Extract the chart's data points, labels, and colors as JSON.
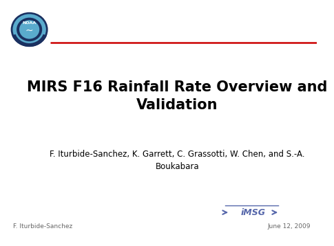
{
  "title_line1": "MIRS F16 Rainfall Rate Overview and",
  "title_line2": "Validation",
  "authors_line1": "F. Iturbide-Sanchez, K. Garrett, C. Grassotti, W. Chen, and S.-A.",
  "authors_line2": "Boukabara",
  "footer_left": "F. Iturbide-Sanchez",
  "footer_right": "June 12, 2009",
  "bg_color": "#ffffff",
  "title_color": "#000000",
  "authors_color": "#000000",
  "footer_color": "#666666",
  "red_line_color": "#cc0000",
  "title_fontsize": 15,
  "authors_fontsize": 8.5,
  "footer_fontsize": 6.5,
  "imsg_logo_color": "#5566aa"
}
